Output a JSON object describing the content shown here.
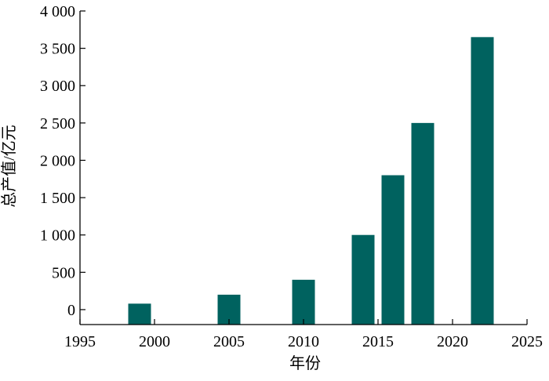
{
  "chart_data": {
    "type": "bar",
    "xlabel": "年份",
    "ylabel": "总产值/亿元",
    "xlim": [
      1995,
      2025
    ],
    "ylim": [
      -200,
      4000
    ],
    "xticks": [
      {
        "value": 1995,
        "label": "1995"
      },
      {
        "value": 2000,
        "label": "2000"
      },
      {
        "value": 2005,
        "label": "2005"
      },
      {
        "value": 2010,
        "label": "2010"
      },
      {
        "value": 2015,
        "label": "2015"
      },
      {
        "value": 2020,
        "label": "2020"
      },
      {
        "value": 2025,
        "label": "2025"
      }
    ],
    "yticks": [
      {
        "value": 0,
        "label": "0"
      },
      {
        "value": 500,
        "label": "500"
      },
      {
        "value": 1000,
        "label": "1 000"
      },
      {
        "value": 1500,
        "label": "1 500"
      },
      {
        "value": 2000,
        "label": "2 000"
      },
      {
        "value": 2500,
        "label": "2 500"
      },
      {
        "value": 3000,
        "label": "3 000"
      },
      {
        "value": 3500,
        "label": "3 500"
      },
      {
        "value": 4000,
        "label": "4 000"
      }
    ],
    "x": [
      1999,
      2005,
      2010,
      2014,
      2016,
      2018,
      2022
    ],
    "values": [
      80,
      200,
      400,
      1000,
      1800,
      2500,
      3650
    ],
    "bar_color": "#00625f",
    "grid": false
  }
}
